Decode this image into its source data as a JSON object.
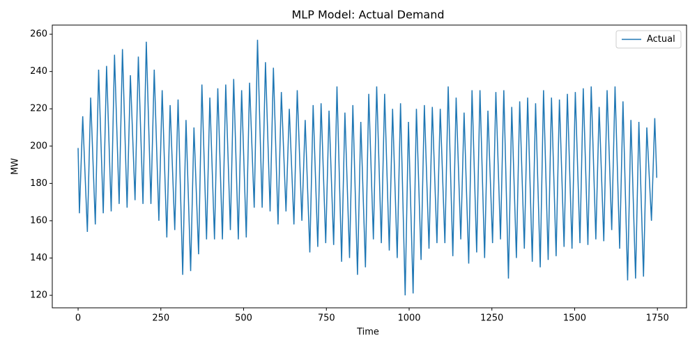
{
  "chart_data": {
    "type": "line",
    "title": "MLP Model: Actual Demand",
    "xlabel": "Time",
    "ylabel": "MW",
    "x": [
      0,
      4,
      14,
      28,
      38,
      52,
      62,
      76,
      86,
      100,
      110,
      124,
      134,
      148,
      158,
      172,
      182,
      196,
      206,
      220,
      230,
      244,
      254,
      268,
      278,
      292,
      302,
      316,
      326,
      340,
      350,
      364,
      374,
      388,
      398,
      412,
      422,
      436,
      446,
      460,
      470,
      484,
      494,
      508,
      518,
      532,
      542,
      556,
      566,
      580,
      590,
      604,
      614,
      628,
      638,
      652,
      662,
      676,
      686,
      700,
      710,
      724,
      734,
      748,
      758,
      772,
      782,
      796,
      806,
      820,
      830,
      844,
      854,
      868,
      878,
      892,
      902,
      916,
      926,
      940,
      950,
      964,
      974,
      988,
      998,
      1012,
      1022,
      1036,
      1046,
      1060,
      1070,
      1084,
      1094,
      1108,
      1118,
      1132,
      1142,
      1156,
      1166,
      1180,
      1190,
      1204,
      1214,
      1228,
      1238,
      1252,
      1262,
      1276,
      1286,
      1300,
      1310,
      1324,
      1334,
      1348,
      1358,
      1372,
      1382,
      1396,
      1406,
      1420,
      1430,
      1444,
      1454,
      1468,
      1478,
      1492,
      1502,
      1516,
      1526,
      1540,
      1550,
      1564,
      1574,
      1588,
      1598,
      1612,
      1622,
      1636,
      1646,
      1660,
      1670,
      1684,
      1694,
      1708,
      1718,
      1732,
      1742,
      1748
    ],
    "series": [
      {
        "name": "Actual",
        "color": "#1f77b4",
        "values": [
          199,
          164,
          216,
          154,
          226,
          158,
          241,
          164,
          243,
          165,
          249,
          169,
          252,
          167,
          238,
          171,
          248,
          169,
          256,
          169,
          241,
          160,
          230,
          151,
          222,
          155,
          225,
          131,
          214,
          133,
          210,
          142,
          233,
          150,
          226,
          150,
          231,
          150,
          233,
          155,
          236,
          150,
          230,
          151,
          234,
          167,
          257,
          167,
          245,
          165,
          242,
          158,
          229,
          165,
          220,
          158,
          230,
          160,
          214,
          143,
          222,
          146,
          223,
          148,
          219,
          147,
          232,
          138,
          218,
          140,
          222,
          131,
          213,
          135,
          228,
          150,
          232,
          148,
          228,
          144,
          220,
          140,
          223,
          120,
          213,
          121,
          220,
          139,
          222,
          145,
          221,
          148,
          220,
          148,
          232,
          141,
          226,
          150,
          218,
          137,
          230,
          143,
          230,
          140,
          219,
          148,
          229,
          150,
          230,
          129,
          221,
          140,
          224,
          145,
          226,
          138,
          223,
          135,
          230,
          139,
          226,
          141,
          225,
          146,
          228,
          145,
          229,
          148,
          231,
          147,
          232,
          150,
          221,
          149,
          230,
          155,
          232,
          145,
          224,
          128,
          214,
          129,
          213,
          130,
          210,
          160,
          215,
          183
        ]
      }
    ],
    "xlim": [
      -78,
      1838
    ],
    "ylim": [
      113.3,
      264.9
    ],
    "xticks": [
      0,
      250,
      500,
      750,
      1000,
      1250,
      1500,
      1750
    ],
    "yticks": [
      120,
      140,
      160,
      180,
      200,
      220,
      240,
      260
    ],
    "legend": "upper right"
  }
}
